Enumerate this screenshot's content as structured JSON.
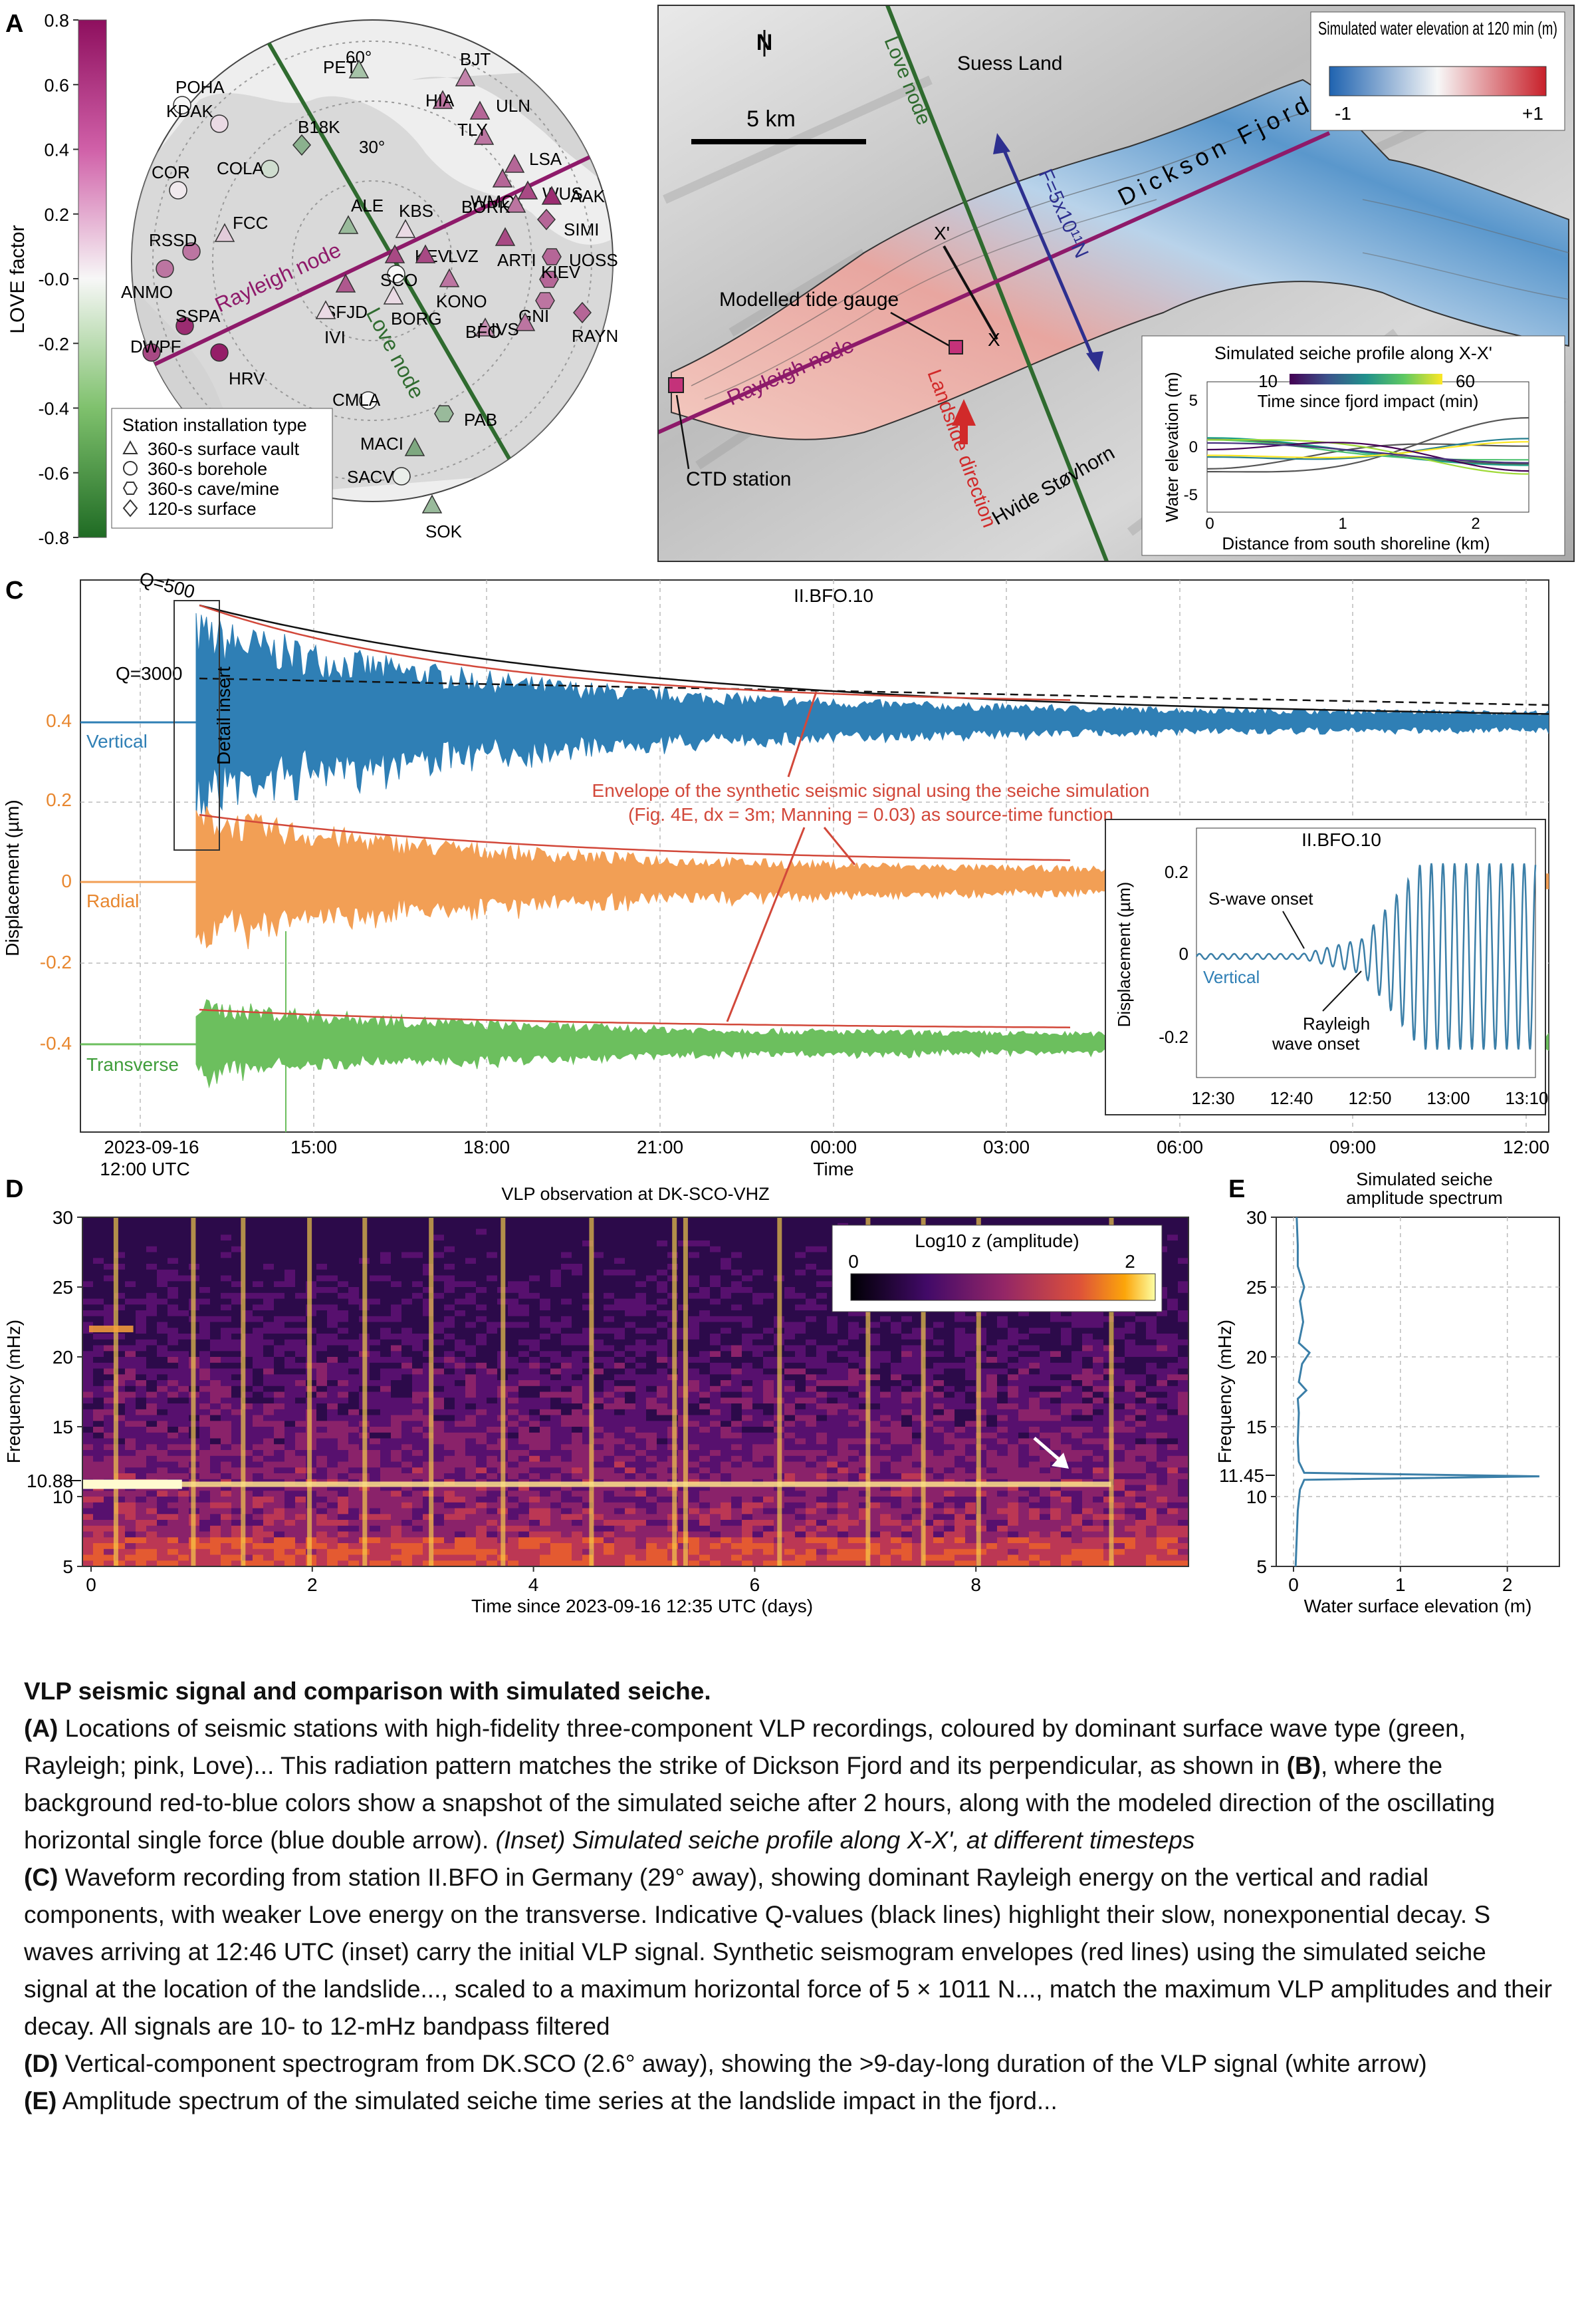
{
  "panels": {
    "a": {
      "letter": "A",
      "colorbar_label": "LOVE factor",
      "colorbar_ticks": [
        "0.8",
        "0.6",
        "0.4",
        "0.2",
        "-0.0",
        "-0.2",
        "-0.4",
        "-0.6",
        "-0.8"
      ],
      "lat_labels": [
        "60°",
        "30°"
      ],
      "rayleigh_label": "Rayleigh node",
      "love_label": "Love node",
      "legend_title": "Station installation type",
      "legend_items": [
        "360-s surface vault",
        "360-s borehole",
        "360-s cave/mine",
        "120-s surface"
      ],
      "stations": [
        {
          "name": "PET",
          "love": -0.3,
          "shape": "triangle"
        },
        {
          "name": "BJT",
          "love": 0.4,
          "shape": "triangle"
        },
        {
          "name": "POHA",
          "love": 0.0,
          "shape": "circle"
        },
        {
          "name": "KDAK",
          "love": 0.1,
          "shape": "circle"
        },
        {
          "name": "B18K",
          "love": -0.4,
          "shape": "diamond"
        },
        {
          "name": "HIA",
          "love": 0.45,
          "shape": "triangle"
        },
        {
          "name": "ULN",
          "love": 0.5,
          "shape": "triangle"
        },
        {
          "name": "TLY",
          "love": 0.45,
          "shape": "triangle"
        },
        {
          "name": "LSA",
          "love": 0.5,
          "shape": "triangle"
        },
        {
          "name": "COLA",
          "love": -0.15,
          "shape": "circle"
        },
        {
          "name": "WMQ",
          "love": 0.5,
          "shape": "triangle"
        },
        {
          "name": "WUS",
          "love": 0.6,
          "shape": "triangle"
        },
        {
          "name": "BORK",
          "love": 0.45,
          "shape": "triangle"
        },
        {
          "name": "AAK",
          "love": 0.7,
          "shape": "triangle"
        },
        {
          "name": "SIMI",
          "love": 0.5,
          "shape": "diamond"
        },
        {
          "name": "COR",
          "love": 0.05,
          "shape": "circle"
        },
        {
          "name": "ALE",
          "love": -0.35,
          "shape": "triangle"
        },
        {
          "name": "KBS",
          "love": 0.1,
          "shape": "triangle"
        },
        {
          "name": "KEV",
          "love": 0.6,
          "shape": "triangle"
        },
        {
          "name": "LVZ",
          "love": 0.6,
          "shape": "triangle"
        },
        {
          "name": "ARTI",
          "love": 0.6,
          "shape": "triangle"
        },
        {
          "name": "UOSS",
          "love": 0.5,
          "shape": "hexagon"
        },
        {
          "name": "FCC",
          "love": 0.15,
          "shape": "triangle"
        },
        {
          "name": "RSSD",
          "love": 0.45,
          "shape": "circle"
        },
        {
          "name": "SCO",
          "love": 0.0,
          "shape": "circle"
        },
        {
          "name": "KONO",
          "love": 0.45,
          "shape": "triangle"
        },
        {
          "name": "KIEV",
          "love": 0.5,
          "shape": "hexagon"
        },
        {
          "name": "GNI",
          "love": 0.45,
          "shape": "hexagon"
        },
        {
          "name": "ANMO",
          "love": 0.45,
          "shape": "circle"
        },
        {
          "name": "SFJD",
          "love": 0.55,
          "shape": "triangle"
        },
        {
          "name": "BORG",
          "love": 0.1,
          "shape": "triangle"
        },
        {
          "name": "DIVS",
          "love": 0.45,
          "shape": "triangle"
        },
        {
          "name": "RAYN",
          "love": 0.5,
          "shape": "diamond"
        },
        {
          "name": "SSPA",
          "love": 0.7,
          "shape": "circle"
        },
        {
          "name": "IVI",
          "love": 0.1,
          "shape": "triangle"
        },
        {
          "name": "BFO",
          "love": 0.35,
          "shape": "triangle"
        },
        {
          "name": "DWPF",
          "love": 0.6,
          "shape": "circle"
        },
        {
          "name": "HRV",
          "love": 0.75,
          "shape": "circle"
        },
        {
          "name": "CMLA",
          "love": 0.0,
          "shape": "circle"
        },
        {
          "name": "PAB",
          "love": -0.35,
          "shape": "hexagon"
        },
        {
          "name": "MACI",
          "love": -0.45,
          "shape": "triangle"
        },
        {
          "name": "SACV",
          "love": -0.05,
          "shape": "circle"
        },
        {
          "name": "SOK",
          "love": -0.35,
          "shape": "triangle"
        }
      ]
    },
    "b": {
      "letter": "B",
      "north": "N",
      "scale": "5 km",
      "place_suess": "Suess Land",
      "place_fjord": "Dickson Fjord",
      "place_hvide": "Hvide Støvhorn",
      "love_label": "Love node",
      "rayleigh_label": "Rayleigh node",
      "force_label": "F=5x10¹¹N",
      "x_left": "X'",
      "x_right": "X",
      "gauge": "Modelled tide gauge",
      "landslide": "Landslide direction",
      "ctd": "CTD station",
      "cbar_title": "Simulated water elevation at 120 min (m)",
      "cbar_min": "-1",
      "cbar_max": "+1",
      "inset_title": "Simulated seiche profile along X-X'",
      "inset_cbar_min": "10",
      "inset_cbar_max": "60",
      "inset_cbar_label": "Time since fjord impact (min)",
      "inset_ylabel": "Water elevation (m)",
      "inset_xlabel": "Distance from south shoreline (km)",
      "inset_yticks": [
        "5",
        "0",
        "-5"
      ],
      "inset_xticks": [
        "0",
        "1",
        "2"
      ]
    },
    "c": {
      "letter": "C",
      "station": "II.BFO.10",
      "ylabel": "Displacement (µm)",
      "yticks": [
        "0.4",
        "0.2",
        "0",
        "-0.2",
        "-0.4"
      ],
      "xticks": [
        "15:00",
        "18:00",
        "21:00",
        "00:00",
        "03:00",
        "06:00",
        "09:00",
        "12:00"
      ],
      "first_tick_date": "2023-09-16",
      "first_tick_time": "12:00 UTC",
      "xlabel": "Time",
      "components": [
        "Vertical",
        "Radial",
        "Transverse"
      ],
      "q_labels": [
        "Q=500",
        "Q=3000"
      ],
      "detail_label": "Detail insert",
      "annotation_line1": "Envelope of the synthetic seismic signal using the  seiche simulation",
      "annotation_line2": "(Fig. 4E, dx = 3m; Manning = 0.03) as source-time function",
      "inset": {
        "title": "II.BFO.10",
        "ylabel": "Displacement (µm)",
        "yticks": [
          "0.2",
          "0",
          "-0.2"
        ],
        "xticks": [
          "12:30",
          "12:40",
          "12:50",
          "13:00",
          "13:10"
        ],
        "component": "Vertical",
        "s_wave": "S-wave onset",
        "rayleigh_onset_1": "Rayleigh",
        "rayleigh_onset_2": "wave onset"
      }
    },
    "d": {
      "letter": "D",
      "title": "VLP observation at DK-SCO-VHZ",
      "ylabel": "Frequency (mHz)",
      "yticks": [
        "30",
        "25",
        "20",
        "15",
        "10",
        "5"
      ],
      "xticks": [
        "0",
        "2",
        "4",
        "6",
        "8"
      ],
      "xlabel": "Time since 2023-09-16 12:35 UTC (days)",
      "marker": "10.88",
      "cbar_title": "Log10 z (amplitude)",
      "cbar_min": "0",
      "cbar_max": "2"
    },
    "e": {
      "letter": "E",
      "title_line1": "Simulated seiche",
      "title_line2": "amplitude spectrum",
      "ylabel": "Frequency (mHz)",
      "yticks": [
        "30",
        "25",
        "20",
        "15",
        "10",
        "5"
      ],
      "xticks": [
        "0",
        "1",
        "2"
      ],
      "xlabel": "Water surface elevation (m)",
      "marker": "11.45"
    }
  },
  "chart_data": [
    {
      "type": "line",
      "panel": "E",
      "title": "Simulated seiche amplitude spectrum",
      "xlabel": "Water surface elevation (m)",
      "ylabel": "Frequency (mHz)",
      "xlim": [
        0,
        2.4
      ],
      "ylim": [
        5,
        30
      ],
      "peak_frequency_mhz": 11.45,
      "peak_amplitude_m": 2.3,
      "series": [
        {
          "points": [
            [
              0.02,
              5.0
            ],
            [
              0.03,
              7.0
            ],
            [
              0.04,
              9.0
            ],
            [
              0.06,
              10.5
            ],
            [
              0.1,
              11.2
            ],
            [
              2.3,
              11.45
            ],
            [
              0.1,
              11.7
            ],
            [
              0.05,
              12.5
            ],
            [
              0.04,
              14.0
            ],
            [
              0.05,
              16.0
            ],
            [
              0.04,
              17.0
            ],
            [
              0.12,
              17.6
            ],
            [
              0.05,
              18.2
            ],
            [
              0.08,
              19.5
            ],
            [
              0.15,
              20.3
            ],
            [
              0.05,
              21.0
            ],
            [
              0.09,
              22.5
            ],
            [
              0.06,
              24.0
            ],
            [
              0.1,
              25.0
            ],
            [
              0.04,
              26.5
            ],
            [
              0.04,
              28.0
            ],
            [
              0.03,
              30.0
            ]
          ]
        }
      ]
    },
    {
      "type": "heatmap",
      "panel": "D",
      "title": "VLP observation at DK-SCO-VHZ",
      "xlabel": "Time since 2023-09-16 12:35 UTC (days)",
      "ylabel": "Frequency (mHz)",
      "xlim": [
        0,
        10
      ],
      "ylim": [
        5,
        30
      ],
      "colorbar": {
        "label": "Log10 z (amplitude)",
        "range": [
          0,
          2
        ]
      },
      "persistent_line_frequency_mhz": 10.88
    }
  ],
  "caption": {
    "title": "VLP seismic signal and comparison with simulated seiche.",
    "a_tag": "(A)",
    "a_text": " Locations of seismic stations with high-fidelity three-component VLP recordings, coloured by dominant surface wave type (green, Rayleigh; pink, Love)... This radiation pattern matches the strike of Dickson Fjord and its perpendicular, as shown in ",
    "b_tag": "(B)",
    "b_text": ", where the background red-to-blue colors show a snapshot of the simulated seiche after 2 hours, along with the modeled direction of the oscillating horizontal single force (blue double arrow). ",
    "b_inset": "(Inset) Simulated seiche profile along X-X', at different timesteps",
    "c_tag": "(C)",
    "c_text": " Waveform recording from station II.BFO in Germany (29° away), showing dominant Rayleigh energy on the vertical and radial components, with weaker Love energy on the transverse. Indicative Q-values (black lines) highlight their slow, nonexponential decay. S waves arriving at 12:46 UTC (inset) carry the initial VLP signal. Synthetic seismogram envelopes (red lines) using the simulated seiche signal at the location of the landslide..., scaled to a maximum horizontal force of 5 × 1011 N..., match the maximum VLP amplitudes and their decay. All signals are 10- to 12-mHz bandpass filtered",
    "d_tag": "(D)",
    "d_text": " Vertical-component spectrogram from DK.SCO (2.6° away), showing the >9-day-long duration of the VLP signal (white arrow)",
    "e_tag": "(E)",
    "e_text": " Amplitude spectrum of the simulated seiche time series at the landslide impact in the fjord..."
  },
  "colors": {
    "love": "#a0226b",
    "rayleigh": "#2f7d2f",
    "love_node_line": "#2f6b2f",
    "rayleigh_node_line": "#8e1a6a",
    "vertical": "#2f7fb5",
    "radial": "#f29f55",
    "transverse": "#6cbf5e",
    "envelope": "#d2483a",
    "force_arrow": "#2d2f8f",
    "seiche_line": "#3b7fa8"
  }
}
